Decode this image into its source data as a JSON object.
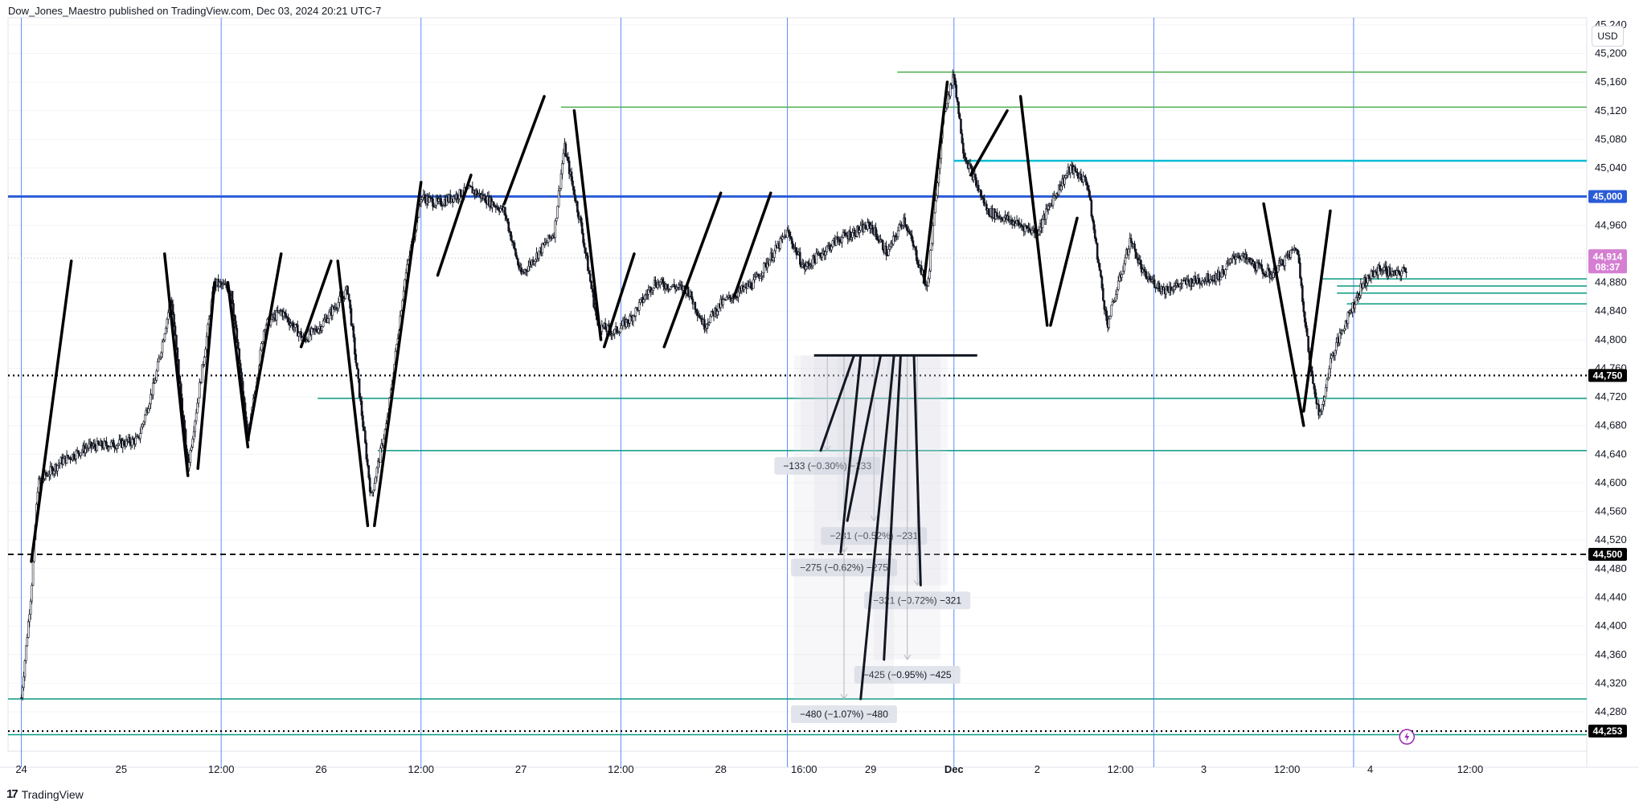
{
  "header": {
    "publisher": "Dow_Jones_Maestro published on TradingView.com, Dec 03, 2024 20:21 UTC-7"
  },
  "currency_button": "USD",
  "logo": {
    "text": "TradingView",
    "mark": "17"
  },
  "colors": {
    "candle": "#131722",
    "vline": "#2962ff",
    "level_45000": "#2a5bd7",
    "green_line": "#089981",
    "bright_green": "#4caf50",
    "cyan_line": "#00bcd4",
    "dotted": "#000000",
    "last_price_badge": "#d47fd2",
    "axis_badge": "#000000"
  },
  "chart_data": {
    "type": "candlestick",
    "symbol_currency": "USD",
    "y_axis": {
      "ylim": [
        44225,
        45250
      ],
      "ticks": [
        "44,280",
        "44,320",
        "44,360",
        "44,400",
        "44,440",
        "44,480",
        "44,520",
        "44,560",
        "44,600",
        "44,640",
        "44,680",
        "44,720",
        "44,760",
        "44,800",
        "44,840",
        "44,880",
        "44,920",
        "44,960",
        "45,000",
        "45,040",
        "45,080",
        "45,120",
        "45,160",
        "45,200",
        "45,240"
      ],
      "badges": [
        {
          "label": "45,000",
          "value": 45000,
          "style": "blue"
        },
        {
          "label": "44,750",
          "value": 44750,
          "style": "black"
        },
        {
          "label": "44,500",
          "value": 44500,
          "style": "black"
        },
        {
          "label": "44,253",
          "value": 44253,
          "style": "black"
        }
      ],
      "last_price": {
        "value": 44914,
        "label": "44,914",
        "countdown": "08:37"
      }
    },
    "x_axis": {
      "labels": [
        "24",
        "25",
        "12:00",
        "26",
        "12:00",
        "27",
        "12:00",
        "28",
        "16:00",
        "29",
        "Dec",
        "2",
        "12:00",
        "3",
        "12:00",
        "4",
        "12:00"
      ],
      "t": [
        0,
        3,
        6,
        9,
        12,
        15,
        18,
        21,
        23.5,
        25.5,
        28,
        30.5,
        33,
        35.5,
        38,
        40.5,
        43.5
      ],
      "t_range": [
        -0.4,
        47
      ]
    },
    "separators_t": [
      0,
      6,
      12,
      18,
      23,
      28,
      34,
      40
    ],
    "horizontal_levels": [
      {
        "value": 45000,
        "style": "blue-thick",
        "t_from": null
      },
      {
        "value": 44750,
        "style": "dotted",
        "t_from": null
      },
      {
        "value": 44500,
        "style": "dashed",
        "t_from": null
      },
      {
        "value": 44253,
        "style": "dotted",
        "t_from": null
      },
      {
        "value": 45174,
        "style": "green",
        "t_from": 26.3
      },
      {
        "value": 45125,
        "style": "green",
        "t_from": 16.2
      },
      {
        "value": 45050,
        "style": "cyan",
        "t_from": 28
      },
      {
        "value": 44885,
        "style": "teal",
        "t_from": 39
      },
      {
        "value": 44875,
        "style": "teal",
        "t_from": 39.5
      },
      {
        "value": 44865,
        "style": "teal",
        "t_from": 39.5
      },
      {
        "value": 44850,
        "style": "teal",
        "t_from": 39.8
      },
      {
        "value": 44718,
        "style": "teal",
        "t_from": 8.9
      },
      {
        "value": 44645,
        "style": "teal",
        "t_from": 10.7
      },
      {
        "value": 44298,
        "style": "teal",
        "t_from": null
      },
      {
        "value": 44248,
        "style": "teal",
        "t_from": null
      }
    ],
    "price_path": [
      [
        0,
        44300
      ],
      [
        0.3,
        44450
      ],
      [
        0.5,
        44600
      ],
      [
        1.2,
        44630
      ],
      [
        2,
        44650
      ],
      [
        3,
        44655
      ],
      [
        3.5,
        44660
      ],
      [
        4,
        44740
      ],
      [
        4.5,
        44860
      ],
      [
        5.0,
        44620
      ],
      [
        5.8,
        44880
      ],
      [
        6.3,
        44870
      ],
      [
        6.8,
        44660
      ],
      [
        7.3,
        44820
      ],
      [
        7.8,
        44840
      ],
      [
        8.5,
        44800
      ],
      [
        9,
        44820
      ],
      [
        9.8,
        44870
      ],
      [
        10.5,
        44580
      ],
      [
        11,
        44690
      ],
      [
        11.5,
        44880
      ],
      [
        12,
        45000
      ],
      [
        12.5,
        44990
      ],
      [
        13.5,
        45010
      ],
      [
        14.5,
        44980
      ],
      [
        15,
        44890
      ],
      [
        15.5,
        44920
      ],
      [
        16,
        44950
      ],
      [
        16.3,
        45070
      ],
      [
        16.8,
        44960
      ],
      [
        17.3,
        44820
      ],
      [
        17.8,
        44810
      ],
      [
        18.3,
        44830
      ],
      [
        19,
        44880
      ],
      [
        20,
        44870
      ],
      [
        20.5,
        44820
      ],
      [
        21,
        44850
      ],
      [
        22,
        44880
      ],
      [
        23,
        44950
      ],
      [
        23.5,
        44900
      ],
      [
        24.5,
        44940
      ],
      [
        25.5,
        44960
      ],
      [
        26,
        44920
      ],
      [
        26.5,
        44970
      ],
      [
        27.2,
        44870
      ],
      [
        27.7,
        45120
      ],
      [
        28,
        45170
      ],
      [
        28.3,
        45060
      ],
      [
        29,
        44980
      ],
      [
        30,
        44960
      ],
      [
        30.5,
        44950
      ],
      [
        31,
        45000
      ],
      [
        31.5,
        45040
      ],
      [
        32,
        45020
      ],
      [
        32.6,
        44820
      ],
      [
        33.3,
        44940
      ],
      [
        33.7,
        44890
      ],
      [
        34.3,
        44870
      ],
      [
        35,
        44880
      ],
      [
        36,
        44890
      ],
      [
        36.5,
        44920
      ],
      [
        37.5,
        44890
      ],
      [
        38.3,
        44930
      ],
      [
        38.7,
        44760
      ],
      [
        39,
        44690
      ],
      [
        39.3,
        44770
      ],
      [
        39.8,
        44830
      ],
      [
        40.3,
        44880
      ],
      [
        40.8,
        44900
      ],
      [
        41.3,
        44890
      ],
      [
        41.6,
        44900
      ]
    ],
    "trend_lines": [
      [
        [
          0.3,
          44490
        ],
        [
          1.5,
          44910
        ]
      ],
      [
        [
          4.3,
          44920
        ],
        [
          5.0,
          44610
        ]
      ],
      [
        [
          5.3,
          44620
        ],
        [
          5.8,
          44880
        ]
      ],
      [
        [
          6.2,
          44880
        ],
        [
          6.8,
          44650
        ]
      ],
      [
        [
          6.8,
          44660
        ],
        [
          7.8,
          44920
        ]
      ],
      [
        [
          8.4,
          44790
        ],
        [
          9.3,
          44910
        ]
      ],
      [
        [
          9.5,
          44910
        ],
        [
          10.4,
          44540
        ]
      ],
      [
        [
          10.6,
          44540
        ],
        [
          12.0,
          45020
        ]
      ],
      [
        [
          12.5,
          44890
        ],
        [
          13.5,
          45030
        ]
      ],
      [
        [
          14.5,
          44990
        ],
        [
          15.7,
          45140
        ]
      ],
      [
        [
          16.6,
          45120
        ],
        [
          17.4,
          44800
        ]
      ],
      [
        [
          17.5,
          44790
        ],
        [
          18.4,
          44920
        ]
      ],
      [
        [
          19.3,
          44790
        ],
        [
          21.0,
          45005
        ]
      ],
      [
        [
          21.4,
          44860
        ],
        [
          22.5,
          45005
        ]
      ],
      [
        [
          27.1,
          44880
        ],
        [
          27.8,
          45160
        ]
      ],
      [
        [
          28.5,
          45030
        ],
        [
          29.6,
          45120
        ]
      ],
      [
        [
          30.0,
          45140
        ],
        [
          30.8,
          44820
        ]
      ],
      [
        [
          30.9,
          44820
        ],
        [
          31.7,
          44970
        ]
      ],
      [
        [
          37.3,
          44990
        ],
        [
          38.5,
          44680
        ]
      ],
      [
        [
          38.5,
          44700
        ],
        [
          39.3,
          44980
        ]
      ]
    ],
    "measurements": [
      {
        "label": "−133 (−0.30%) −133",
        "t_start": 23.4,
        "t_end": 25.0,
        "y_from": 44778,
        "y_to": 44645
      },
      {
        "label": "−231 (−0.52%) −231",
        "t_start": 24.5,
        "t_end": 26.7,
        "y_from": 44778,
        "y_to": 44547
      },
      {
        "label": "−275 (−0.62%) −275",
        "t_start": 23.8,
        "t_end": 25.6,
        "y_from": 44778,
        "y_to": 44503
      },
      {
        "label": "−321 (−0.72%) −321",
        "t_start": 26.0,
        "t_end": 27.8,
        "y_from": 44778,
        "y_to": 44457
      },
      {
        "label": "−425 (−0.95%) −425",
        "t_start": 25.6,
        "t_end": 27.6,
        "y_from": 44778,
        "y_to": 44353
      },
      {
        "label": "−480 (−1.07%) −480",
        "t_start": 23.2,
        "t_end": 26.2,
        "y_from": 44778,
        "y_to": 44298
      }
    ]
  }
}
